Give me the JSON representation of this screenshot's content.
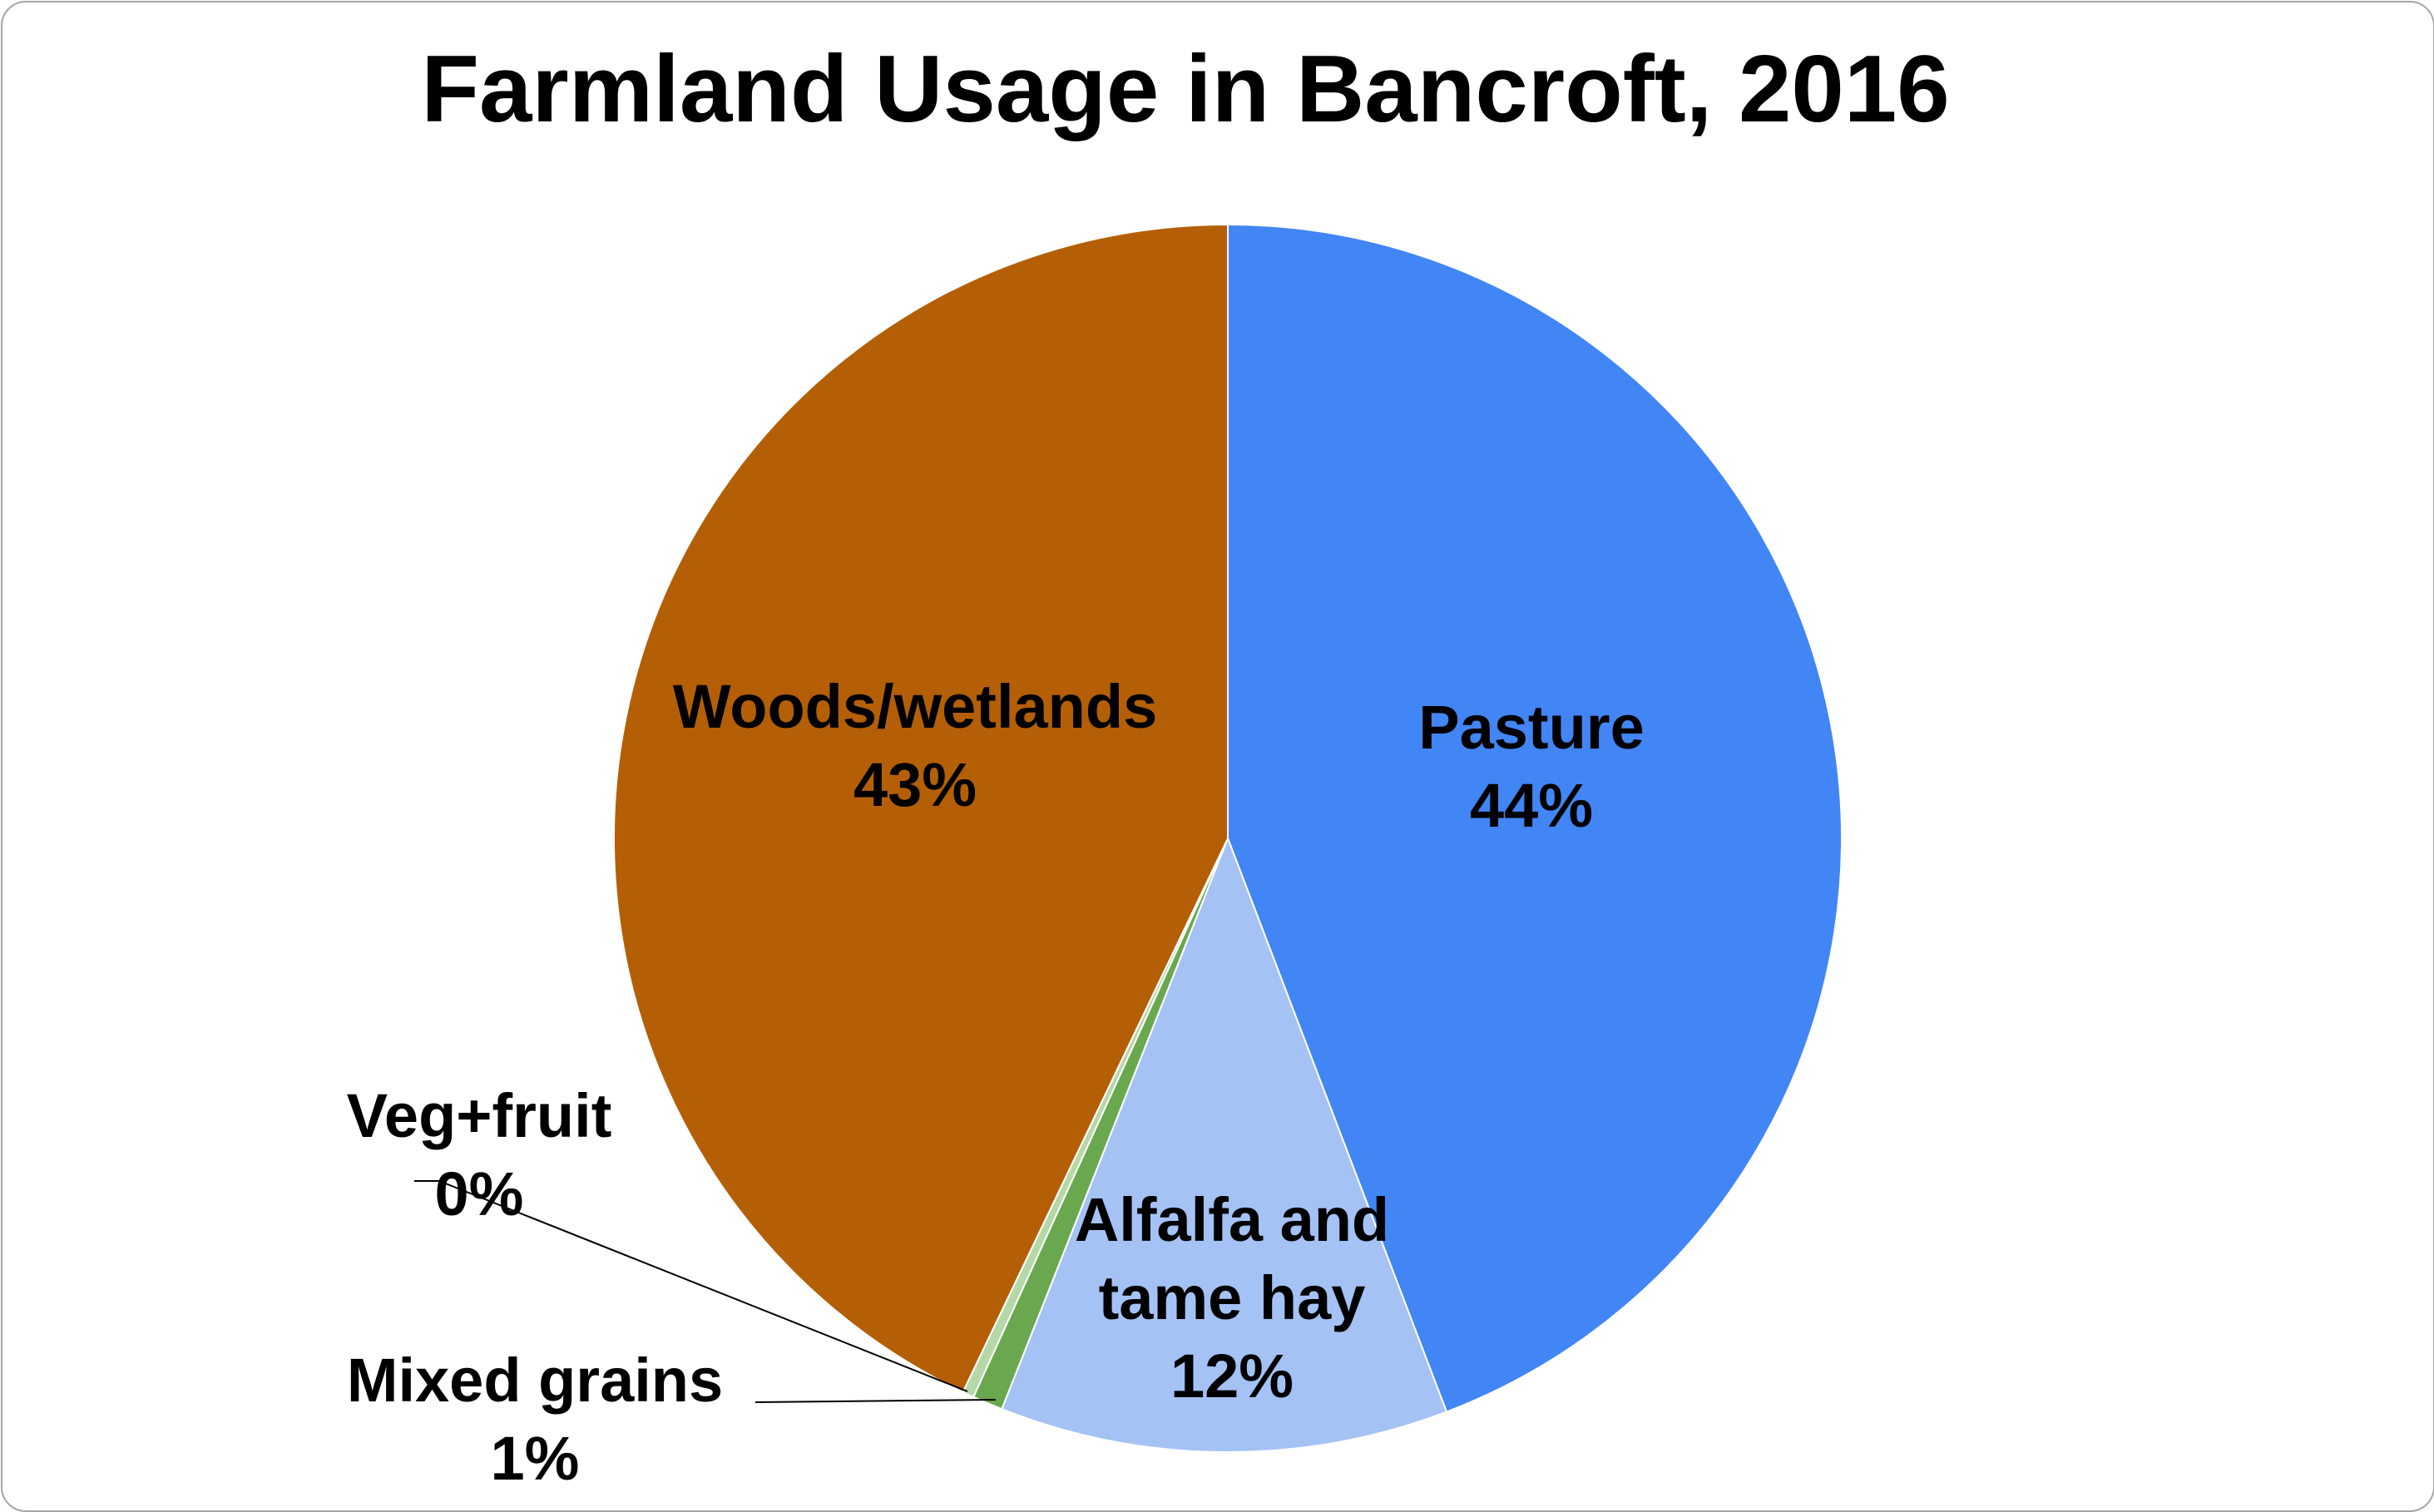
{
  "chart_data": {
    "type": "pie",
    "title": "Farmland Usage in Bancroft, 2016",
    "start_angle_deg": 0,
    "direction": "clockwise",
    "slices": [
      {
        "label_lines": [
          "Pasture"
        ],
        "percent_label": "44%",
        "value": 44.2,
        "color": "#4285f4"
      },
      {
        "label_lines": [
          "Alfalfa and",
          "tame hay"
        ],
        "percent_label": "12%",
        "value": 11.8,
        "color": "#a4c2f4"
      },
      {
        "label_lines": [
          "Mixed grains"
        ],
        "percent_label": "1%",
        "value": 0.8,
        "color": "#6aa84f"
      },
      {
        "label_lines": [
          "Veg+fruit"
        ],
        "percent_label": "0%",
        "value": 0.3,
        "color": "#b6d7a8"
      },
      {
        "label_lines": [
          "Woods/wetlands"
        ],
        "percent_label": "43%",
        "value": 42.9,
        "color": "#b45f06"
      }
    ]
  }
}
